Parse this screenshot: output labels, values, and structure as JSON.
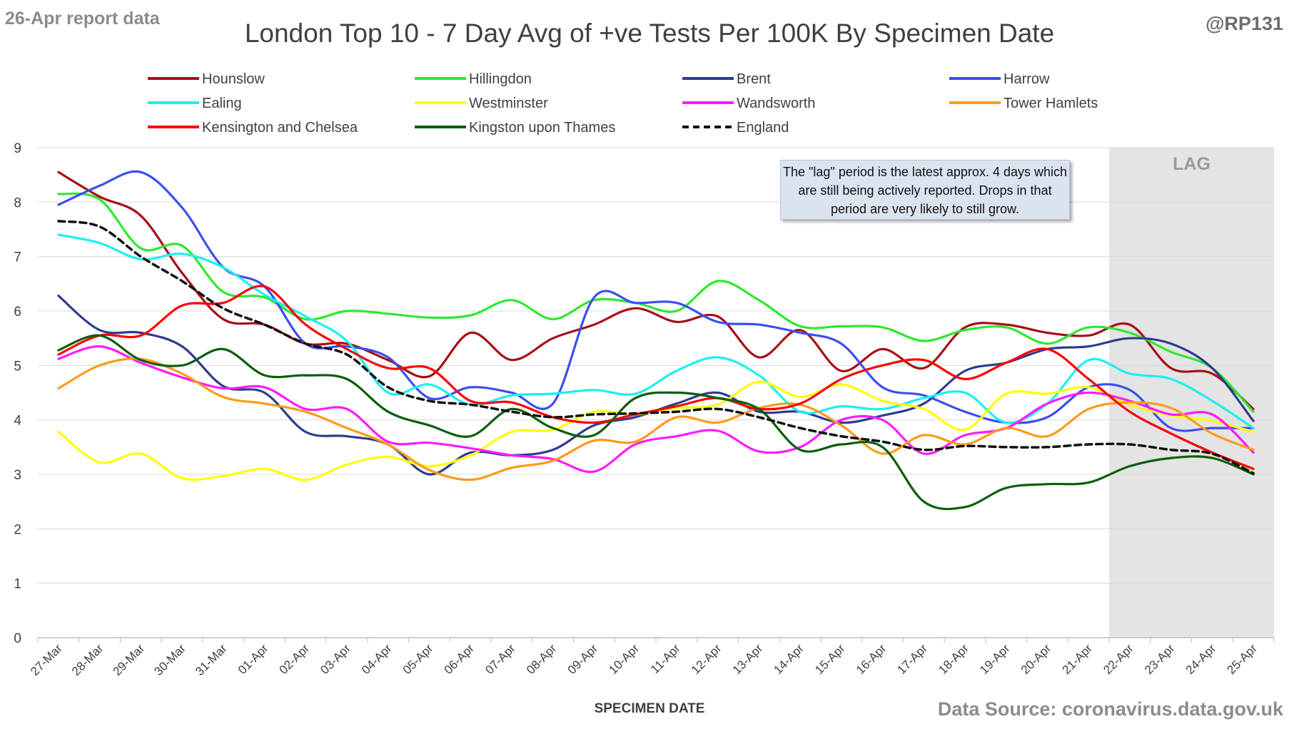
{
  "header": {
    "report_label": "26-Apr report data",
    "handle": "@RP131",
    "source": "Data Source: coronavirus.data.gov.uk"
  },
  "note": "The \"lag\" period is the latest approx. 4 days which are still being actively reported.  Drops in that period are very likely to still grow.",
  "chart_data": {
    "type": "line",
    "title": "London Top 10 - 7 Day Avg of +ve Tests Per 100K By Specimen Date",
    "xlabel": "SPECIMEN DATE",
    "ylabel": "",
    "ylim": [
      0,
      9
    ],
    "yticks": [
      "0",
      "1",
      "2",
      "3",
      "4",
      "5",
      "6",
      "7",
      "8",
      "9"
    ],
    "grid": true,
    "legend_position": "top",
    "lag_region": {
      "label": "LAG",
      "from": "21-Apr",
      "to": "25-Apr"
    },
    "x": [
      "27-Mar",
      "28-Mar",
      "29-Mar",
      "30-Mar",
      "31-Mar",
      "01-Apr",
      "02-Apr",
      "03-Apr",
      "04-Apr",
      "05-Apr",
      "06-Apr",
      "07-Apr",
      "08-Apr",
      "09-Apr",
      "10-Apr",
      "11-Apr",
      "12-Apr",
      "13-Apr",
      "14-Apr",
      "15-Apr",
      "16-Apr",
      "17-Apr",
      "18-Apr",
      "19-Apr",
      "20-Apr",
      "21-Apr",
      "22-Apr",
      "23-Apr",
      "24-Apr",
      "25-Apr"
    ],
    "series": [
      {
        "name": "Hounslow",
        "color": "#a50f15",
        "dashed": false,
        "values": [
          8.55,
          8.1,
          7.75,
          6.7,
          5.85,
          5.75,
          5.4,
          5.4,
          5.1,
          4.8,
          5.6,
          5.1,
          5.5,
          5.75,
          6.05,
          5.8,
          5.9,
          5.15,
          5.65,
          4.9,
          5.3,
          4.95,
          5.7,
          5.75,
          5.6,
          5.55,
          5.75,
          4.95,
          4.85,
          4.2
        ]
      },
      {
        "name": "Hillingdon",
        "color": "#2ee82e",
        "dashed": false,
        "values": [
          8.15,
          8.05,
          7.15,
          7.2,
          6.35,
          6.25,
          5.85,
          6.0,
          5.95,
          5.88,
          5.92,
          6.2,
          5.85,
          6.2,
          6.15,
          6.0,
          6.55,
          6.2,
          5.72,
          5.72,
          5.7,
          5.45,
          5.65,
          5.7,
          5.4,
          5.7,
          5.6,
          5.25,
          4.95,
          4.15
        ]
      },
      {
        "name": "Brent",
        "color": "#2e3b8f",
        "dashed": false,
        "values": [
          6.28,
          5.65,
          5.6,
          5.35,
          4.62,
          4.5,
          3.78,
          3.7,
          3.55,
          3.0,
          3.4,
          3.35,
          3.45,
          3.9,
          4.05,
          4.3,
          4.5,
          4.15,
          4.15,
          3.95,
          4.08,
          4.3,
          4.9,
          5.05,
          5.3,
          5.35,
          5.5,
          5.4,
          4.95,
          3.98
        ]
      },
      {
        "name": "Harrow",
        "color": "#3b4ef0",
        "dashed": false,
        "values": [
          7.95,
          8.3,
          8.55,
          7.9,
          6.8,
          6.45,
          5.4,
          5.35,
          5.15,
          4.4,
          4.6,
          4.5,
          4.3,
          6.25,
          6.15,
          6.15,
          5.8,
          5.75,
          5.6,
          5.4,
          4.6,
          4.45,
          4.15,
          3.95,
          4.05,
          4.6,
          4.55,
          3.85,
          3.85,
          3.85
        ]
      },
      {
        "name": "Ealing",
        "color": "#1af0f0",
        "dashed": false,
        "values": [
          7.4,
          7.25,
          6.95,
          7.05,
          6.8,
          6.3,
          5.9,
          5.45,
          4.5,
          4.65,
          4.28,
          4.45,
          4.48,
          4.55,
          4.48,
          4.9,
          5.15,
          4.82,
          4.15,
          4.25,
          4.2,
          4.4,
          4.5,
          3.95,
          4.3,
          5.1,
          4.85,
          4.75,
          4.35,
          3.85
        ]
      },
      {
        "name": "Westminster",
        "color": "#ffff00",
        "dashed": false,
        "values": [
          3.78,
          3.22,
          3.38,
          2.93,
          2.97,
          3.1,
          2.9,
          3.18,
          3.32,
          3.15,
          3.35,
          3.78,
          3.82,
          4.15,
          4.1,
          4.22,
          4.28,
          4.7,
          4.42,
          4.65,
          4.35,
          4.2,
          3.82,
          4.48,
          4.48,
          4.6,
          4.28,
          4.08,
          3.98,
          3.78
        ]
      },
      {
        "name": "Wandsworth",
        "color": "#ff1aff",
        "dashed": false,
        "values": [
          5.12,
          5.35,
          5.05,
          4.78,
          4.58,
          4.6,
          4.2,
          4.2,
          3.6,
          3.58,
          3.48,
          3.35,
          3.28,
          3.05,
          3.55,
          3.7,
          3.8,
          3.42,
          3.5,
          4.0,
          4.0,
          3.38,
          3.72,
          3.85,
          4.3,
          4.5,
          4.35,
          4.1,
          4.1,
          3.4
        ]
      },
      {
        "name": "Tower Hamlets",
        "color": "#ff9a1a",
        "dashed": false,
        "values": [
          4.58,
          5.0,
          5.12,
          4.85,
          4.42,
          4.3,
          4.15,
          3.85,
          3.55,
          3.08,
          2.9,
          3.12,
          3.25,
          3.62,
          3.6,
          4.05,
          3.95,
          4.22,
          4.28,
          3.9,
          3.38,
          3.72,
          3.55,
          3.85,
          3.7,
          4.2,
          4.32,
          4.22,
          3.75,
          3.45
        ]
      },
      {
        "name": "Kensington and Chelsea",
        "color": "#ff0000",
        "dashed": false,
        "values": [
          5.2,
          5.55,
          5.55,
          6.1,
          6.15,
          6.45,
          5.75,
          5.3,
          4.95,
          4.95,
          4.35,
          4.32,
          4.05,
          3.95,
          4.1,
          4.25,
          4.4,
          4.2,
          4.3,
          4.75,
          5.0,
          5.1,
          4.75,
          5.05,
          5.3,
          4.75,
          4.15,
          3.75,
          3.4,
          3.1
        ]
      },
      {
        "name": "Kingston upon Thames",
        "color": "#0b5e0b",
        "dashed": false,
        "values": [
          5.28,
          5.55,
          5.1,
          5.0,
          5.3,
          4.82,
          4.82,
          4.75,
          4.15,
          3.9,
          3.7,
          4.2,
          3.85,
          3.72,
          4.4,
          4.5,
          4.4,
          4.2,
          3.45,
          3.55,
          3.5,
          2.5,
          2.4,
          2.75,
          2.82,
          2.85,
          3.15,
          3.3,
          3.3,
          3.0
        ]
      },
      {
        "name": "England",
        "color": "#111111",
        "dashed": true,
        "values": [
          7.65,
          7.55,
          7.0,
          6.55,
          6.05,
          5.75,
          5.4,
          5.2,
          4.6,
          4.35,
          4.28,
          4.15,
          4.05,
          4.1,
          4.12,
          4.15,
          4.2,
          4.05,
          3.85,
          3.7,
          3.6,
          3.45,
          3.52,
          3.5,
          3.5,
          3.55,
          3.55,
          3.45,
          3.38,
          3.02
        ]
      }
    ]
  }
}
